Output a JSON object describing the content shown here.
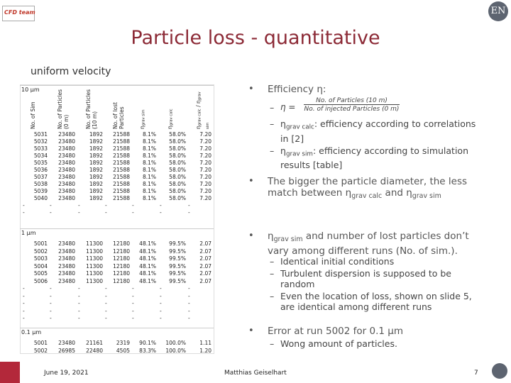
{
  "header": {
    "logo": "CFD team",
    "badge": "EN",
    "title": "Particle loss - quantitative",
    "subtitle": "uniform velocity"
  },
  "table": {
    "columns": [
      [
        {
          "text": "No. of Sim"
        }
      ],
      [
        {
          "text": "No. of Particles (0 m)"
        }
      ],
      [
        {
          "text": "No. of Particles (10 m)"
        }
      ],
      [
        {
          "text": "No. of lost Particles"
        }
      ],
      [
        {
          "text": "η"
        },
        {
          "text": "grav sim",
          "sub": true
        }
      ],
      [
        {
          "text": "η"
        },
        {
          "text": "grav calc",
          "sub": true
        }
      ],
      [
        {
          "text": "η"
        },
        {
          "text": "grav calc",
          "sub": true
        },
        {
          "text": " / η"
        },
        {
          "text": "grav sim",
          "sub": true
        }
      ]
    ],
    "sections": [
      {
        "label": "10 µm",
        "rows": [
          [
            "5031",
            "23480",
            "1892",
            "21588",
            "8.1%",
            "58.0%",
            "7.20"
          ],
          [
            "5032",
            "23480",
            "1892",
            "21588",
            "8.1%",
            "58.0%",
            "7.20"
          ],
          [
            "5033",
            "23480",
            "1892",
            "21588",
            "8.1%",
            "58.0%",
            "7.20"
          ],
          [
            "5034",
            "23480",
            "1892",
            "21588",
            "8.1%",
            "58.0%",
            "7.20"
          ],
          [
            "5035",
            "23480",
            "1892",
            "21588",
            "8.1%",
            "58.0%",
            "7.20"
          ],
          [
            "5036",
            "23480",
            "1892",
            "21588",
            "8.1%",
            "58.0%",
            "7.20"
          ],
          [
            "5037",
            "23480",
            "1892",
            "21588",
            "8.1%",
            "58.0%",
            "7.20"
          ],
          [
            "5038",
            "23480",
            "1892",
            "21588",
            "8.1%",
            "58.0%",
            "7.20"
          ],
          [
            "5039",
            "23480",
            "1892",
            "21588",
            "8.1%",
            "58.0%",
            "7.20"
          ],
          [
            "5040",
            "23480",
            "1892",
            "21588",
            "8.1%",
            "58.0%",
            "7.20"
          ],
          [
            "-",
            "-",
            "-",
            "-",
            "-",
            "-",
            "-"
          ],
          [
            "-",
            "-",
            "-",
            "-",
            "-",
            "-",
            "-"
          ]
        ]
      },
      {
        "label": "1 µm",
        "rows": [
          [
            "5001",
            "23480",
            "11300",
            "12180",
            "48.1%",
            "99.5%",
            "2.07"
          ],
          [
            "5002",
            "23480",
            "11300",
            "12180",
            "48.1%",
            "99.5%",
            "2.07"
          ],
          [
            "5003",
            "23480",
            "11300",
            "12180",
            "48.1%",
            "99.5%",
            "2.07"
          ],
          [
            "5004",
            "23480",
            "11300",
            "12180",
            "48.1%",
            "99.5%",
            "2.07"
          ],
          [
            "5005",
            "23480",
            "11300",
            "12180",
            "48.1%",
            "99.5%",
            "2.07"
          ],
          [
            "5006",
            "23480",
            "11300",
            "12180",
            "48.1%",
            "99.5%",
            "2.07"
          ],
          [
            "-",
            "-",
            "-",
            "-",
            "-",
            "-",
            "-"
          ],
          [
            "-",
            "-",
            "-",
            "-",
            "-",
            "-",
            "-"
          ],
          [
            "-",
            "-",
            "-",
            "-",
            "-",
            "-",
            "-"
          ],
          [
            "-",
            "-",
            "-",
            "-",
            "-",
            "-",
            "-"
          ],
          [
            "-",
            "-",
            "-",
            "-",
            "-",
            "-",
            "-"
          ]
        ]
      },
      {
        "label": "0.1 µm",
        "rows": [
          [
            "5001",
            "23480",
            "21161",
            "2319",
            "90.1%",
            "100.0%",
            "1.11"
          ],
          [
            "5002",
            "26985",
            "22480",
            "4505",
            "83.3%",
            "100.0%",
            "1.20"
          ]
        ]
      }
    ]
  },
  "bullets": [
    {
      "parts": [
        {
          "text": "Efficiency η:"
        }
      ],
      "formula": {
        "lhs": "η =",
        "num": "No. of Particles (10 m)",
        "den": "No. of injected Particles (0 m)"
      },
      "subs": [
        [
          {
            "text": "η"
          },
          {
            "text": "grav calc",
            "sub": true
          },
          {
            "text": ":  efficiency according to correlations in [2]"
          }
        ],
        [
          {
            "text": "η"
          },
          {
            "text": "grav sim",
            "sub": true
          },
          {
            "text": ":  efficiency according to simulation results [table]"
          }
        ]
      ]
    },
    {
      "parts": [
        {
          "text": "The bigger the particle diameter, the less match between "
        },
        {
          "text": "η"
        },
        {
          "text": "grav calc",
          "sub": true
        },
        {
          "text": " and "
        },
        {
          "text": "η"
        },
        {
          "text": "grav sim",
          "sub": true
        }
      ],
      "subs": []
    },
    {
      "parts": [
        {
          "text": "η"
        },
        {
          "text": "grav sim",
          "sub": true
        },
        {
          "text": " and number of lost particles don’t vary among different runs (No. of sim.)."
        }
      ],
      "subs": [
        [
          {
            "text": "Identical initial conditions"
          }
        ],
        [
          {
            "text": "Turbulent dispersion is supposed to be random"
          }
        ],
        [
          {
            "text": "Even the location of loss, shown on slide 5, are identical among different runs"
          }
        ]
      ]
    },
    {
      "parts": [
        {
          "text": "Error at run 5002 for 0.1 µm"
        }
      ],
      "subs": [
        [
          {
            "text": "Wong amount of particles."
          }
        ]
      ]
    }
  ],
  "footer": {
    "date": "June 19, 2021",
    "author": "Matthias Geiselhart",
    "page": "7"
  }
}
